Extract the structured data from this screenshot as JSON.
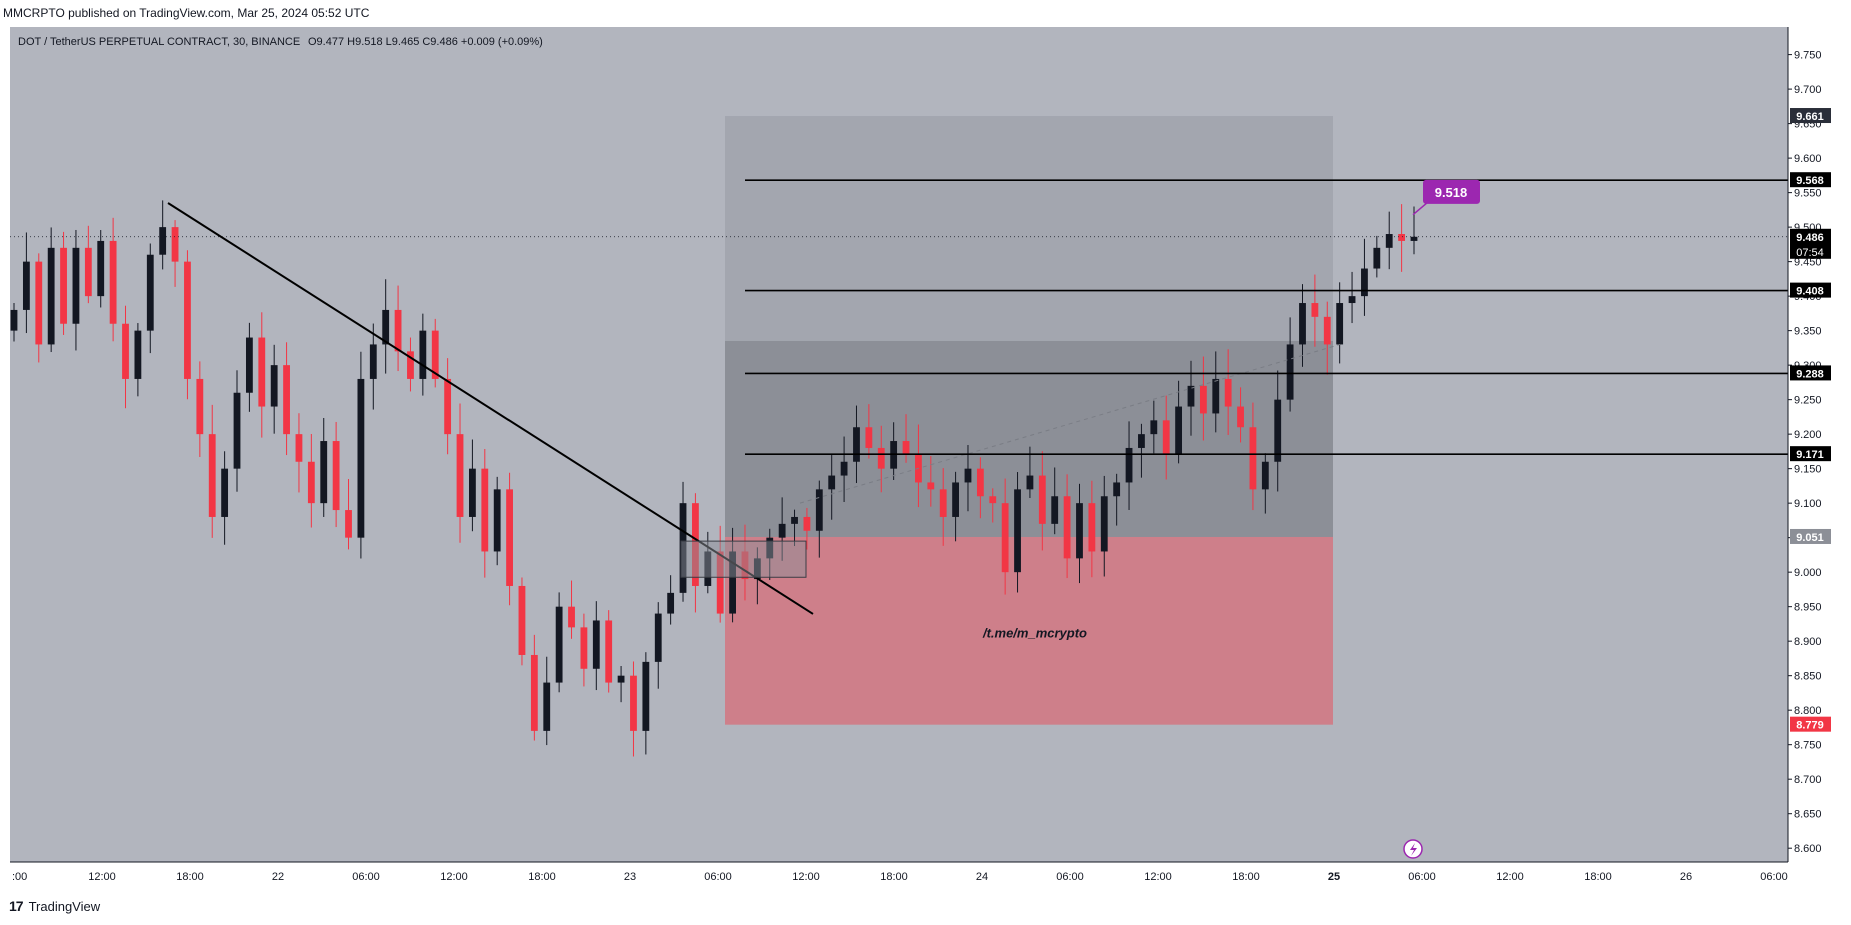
{
  "publication": "MMCRPTO published on TradingView.com, Mar 25, 2024 05:52 UTC",
  "symbol_header": {
    "symbol": "DOT / TetherUS PERPETUAL CONTRACT, 30, BINANCE",
    "ohlc": "O9.477  H9.518  L9.465  C9.486  +0.009 (+0.09%)"
  },
  "footer": {
    "logo_text": "TradingView",
    "logo_mark": "17"
  },
  "watermark": "/t.me/m_mcrypto",
  "colors": {
    "background": "#b2b5be",
    "up": "#131722",
    "down": "#f23645",
    "box_gray": "#a3a6af",
    "box_dark": "#8c8f97",
    "box_red": "#ce7f8a",
    "callout": "#9c27b0"
  },
  "chart_data": {
    "type": "candlestick",
    "timeframe": "30",
    "ylim": [
      8.58,
      9.79
    ],
    "y_ticks": [
      "9.750",
      "9.700",
      "9.650",
      "9.600",
      "9.550",
      "9.500",
      "9.450",
      "9.400",
      "9.350",
      "9.300",
      "9.250",
      "9.200",
      "9.150",
      "9.100",
      "9.050",
      "9.000",
      "8.950",
      "8.900",
      "8.850",
      "8.800",
      "8.750",
      "8.700",
      "8.650",
      "8.600"
    ],
    "x_ticks": [
      ":00",
      "12:00",
      "18:00",
      "22",
      "06:00",
      "12:00",
      "18:00",
      "23",
      "06:00",
      "12:00",
      "18:00",
      "24",
      "06:00",
      "12:00",
      "18:00",
      "25",
      "06:00",
      "12:00",
      "18:00",
      "26",
      "06:00"
    ],
    "price_path": [
      9.38,
      9.45,
      9.33,
      9.47,
      9.36,
      9.47,
      9.4,
      9.48,
      9.36,
      9.28,
      9.35,
      9.46,
      9.5,
      9.45,
      9.28,
      9.2,
      9.08,
      9.15,
      9.26,
      9.34,
      9.24,
      9.3,
      9.2,
      9.16,
      9.1,
      9.19,
      9.09,
      9.05,
      9.28,
      9.33,
      9.38,
      9.32,
      9.28,
      9.35,
      9.28,
      9.2,
      9.08,
      9.15,
      9.03,
      9.12,
      8.98,
      8.88,
      8.77,
      8.84,
      8.95,
      8.92,
      8.86,
      8.93,
      8.84,
      8.85,
      8.77,
      8.87,
      8.94,
      8.97,
      9.1,
      8.98,
      9.03,
      8.94,
      9.03,
      8.99,
      9.02,
      9.05,
      9.07,
      9.08,
      9.06,
      9.12,
      9.14,
      9.16,
      9.21,
      9.18,
      9.15,
      9.19,
      9.17,
      9.13,
      9.12,
      9.08,
      9.13,
      9.15,
      9.11,
      9.1,
      9.0,
      9.12,
      9.14,
      9.07,
      9.11,
      9.02,
      9.1,
      9.03,
      9.11,
      9.13,
      9.18,
      9.2,
      9.22,
      9.17,
      9.24,
      9.27,
      9.23,
      9.28,
      9.24,
      9.21,
      9.12,
      9.16,
      9.25,
      9.33,
      9.39,
      9.37,
      9.33,
      9.39,
      9.4,
      9.44,
      9.47,
      9.49,
      9.48,
      9.486
    ],
    "trendline": {
      "from": {
        "x": "Mar 21 17:00",
        "y": 9.535
      },
      "to": {
        "x": "Mar 23 09:30",
        "y": 8.98
      }
    },
    "horizontal_levels": [
      9.568,
      9.408,
      9.288,
      9.171
    ],
    "price_labels": [
      {
        "label": "9.661",
        "style": "dark"
      },
      {
        "label": "9.568",
        "style": "black"
      },
      {
        "label": "9.486",
        "sublabel": "07:54",
        "style": "black"
      },
      {
        "label": "9.408",
        "style": "black"
      },
      {
        "label": "9.288",
        "style": "black"
      },
      {
        "label": "9.171",
        "style": "black"
      },
      {
        "label": "9.051",
        "style": "gray"
      },
      {
        "label": "8.779",
        "style": "red"
      }
    ],
    "zones": [
      {
        "name": "upper-box",
        "top": 9.661,
        "bottom": 9.051
      },
      {
        "name": "middle-box",
        "top": 9.335,
        "bottom": 9.051
      },
      {
        "name": "red-box",
        "top": 9.051,
        "bottom": 8.779
      }
    ],
    "small_rectangle": {
      "top": 9.045,
      "bottom": 9.01
    },
    "callout": {
      "label": "9.518",
      "price": 9.518
    },
    "current_price": 9.486,
    "grid": false
  }
}
